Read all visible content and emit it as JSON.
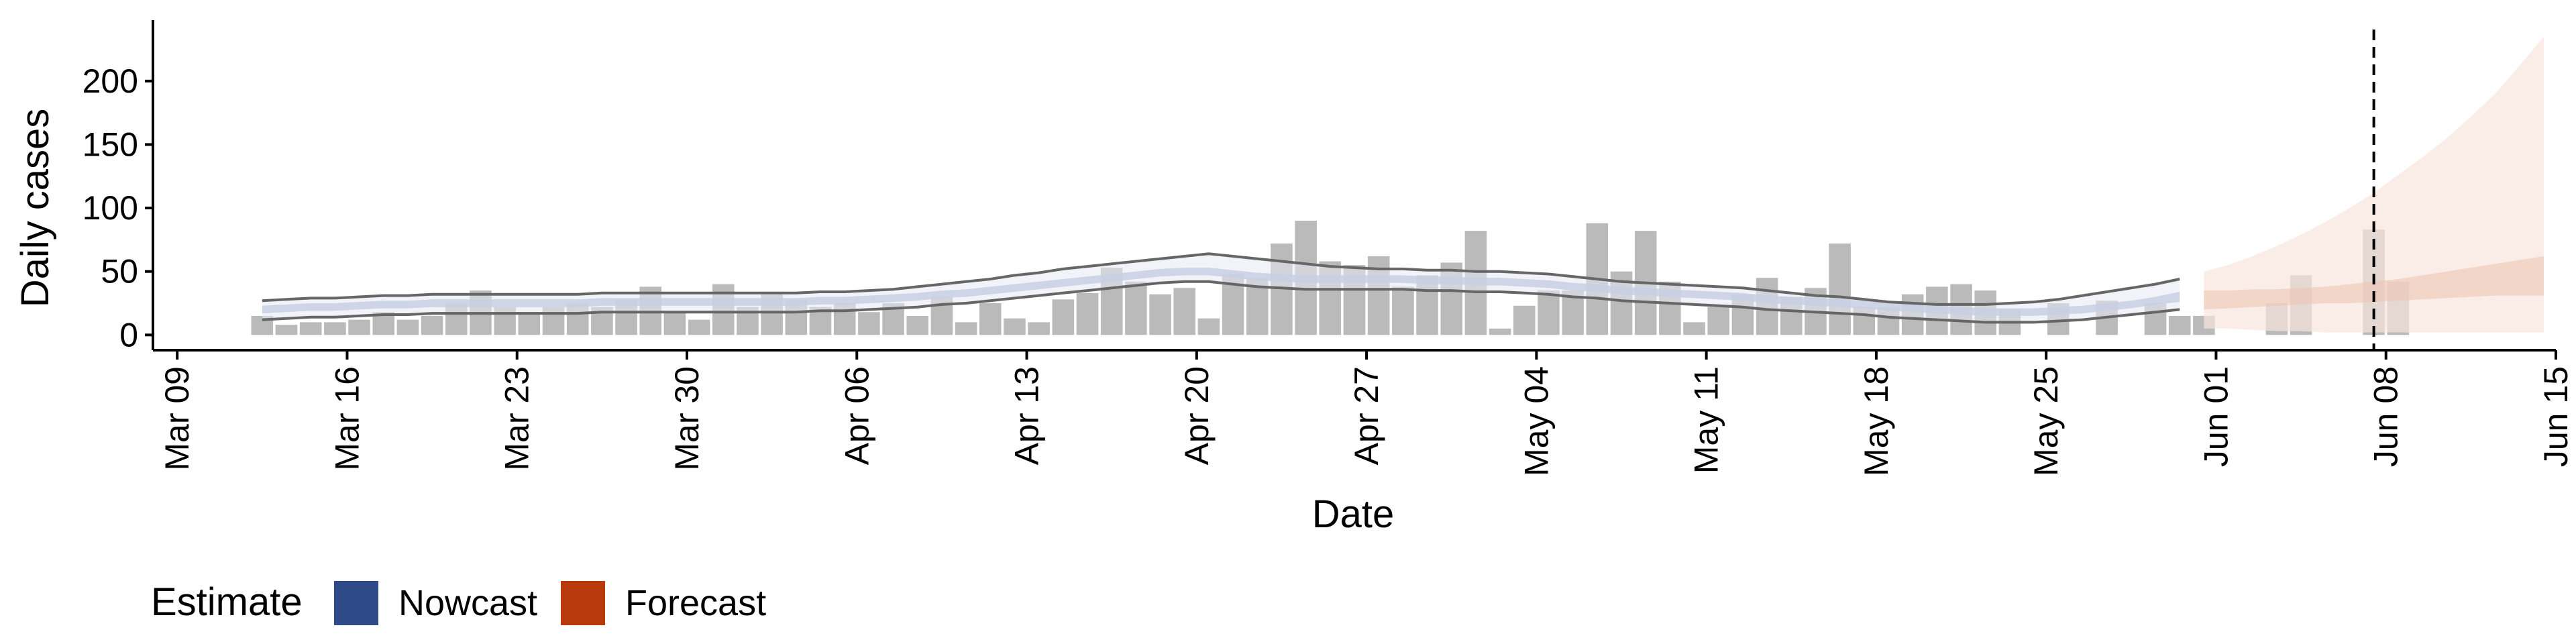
{
  "chart_data": {
    "type": "bar",
    "xlabel": "Date",
    "ylabel": "Daily cases",
    "x_tick_labels": [
      "Mar 09",
      "Mar 16",
      "Mar 23",
      "Mar 30",
      "Apr 06",
      "Apr 13",
      "Apr 20",
      "Apr 27",
      "May 04",
      "May 11",
      "May 18",
      "May 25",
      "Jun 01",
      "Jun 08",
      "Jun 15"
    ],
    "x_range": [
      "2020-03-08",
      "2020-06-15"
    ],
    "y_ticks": [
      0,
      50,
      100,
      150,
      200
    ],
    "ylim": [
      -12,
      248
    ],
    "reference_line": {
      "date": "2020-06-07",
      "style": "dashed"
    },
    "reported_cases": {
      "start_date": "2020-03-12",
      "values": [
        15,
        8,
        10,
        10,
        12,
        18,
        12,
        15,
        25,
        35,
        22,
        18,
        22,
        25,
        22,
        28,
        38,
        18,
        12,
        40,
        22,
        32,
        28,
        22,
        25,
        18,
        25,
        15,
        30,
        10,
        25,
        13,
        10,
        28,
        33,
        53,
        42,
        32,
        37,
        13,
        48,
        45,
        72,
        90,
        58,
        55,
        62,
        38,
        47,
        57,
        82,
        5,
        23,
        35,
        35,
        88,
        50,
        82,
        42,
        10,
        22,
        32,
        45,
        30,
        37,
        72,
        22,
        22,
        32,
        38,
        40,
        35,
        20,
        0,
        25,
        0,
        27,
        0,
        25,
        15,
        15,
        0,
        0,
        25,
        47,
        0,
        0,
        83,
        42,
        0,
        0,
        0
      ]
    },
    "nowcast": {
      "start_date": "2020-03-12",
      "median": [
        20,
        21,
        22,
        22,
        23,
        24,
        24,
        25,
        25,
        25,
        25,
        25,
        25,
        25,
        26,
        26,
        26,
        26,
        26,
        26,
        26,
        26,
        26,
        27,
        27,
        28,
        29,
        30,
        32,
        33,
        35,
        37,
        39,
        41,
        43,
        45,
        47,
        49,
        50,
        50,
        48,
        46,
        45,
        44,
        44,
        44,
        44,
        44,
        43,
        43,
        42,
        42,
        41,
        40,
        38,
        37,
        35,
        34,
        33,
        32,
        31,
        30,
        28,
        27,
        26,
        25,
        24,
        22,
        21,
        20,
        19,
        18,
        18,
        18,
        19,
        20,
        22,
        24,
        27,
        30
      ],
      "inner_lower": [
        17,
        18,
        19,
        19,
        20,
        21,
        21,
        22,
        22,
        22,
        22,
        22,
        22,
        22,
        23,
        23,
        23,
        23,
        23,
        23,
        23,
        23,
        23,
        24,
        24,
        25,
        26,
        27,
        29,
        30,
        32,
        34,
        36,
        38,
        40,
        42,
        44,
        46,
        47,
        47,
        45,
        43,
        42,
        41,
        41,
        41,
        41,
        41,
        40,
        40,
        39,
        39,
        38,
        37,
        35,
        34,
        32,
        31,
        30,
        29,
        28,
        27,
        25,
        24,
        23,
        22,
        21,
        19,
        18,
        17,
        16,
        15,
        15,
        15,
        16,
        17,
        19,
        21,
        24,
        26
      ],
      "inner_upper": [
        23,
        24,
        25,
        25,
        26,
        27,
        27,
        28,
        28,
        28,
        28,
        28,
        28,
        28,
        29,
        29,
        29,
        29,
        29,
        29,
        29,
        29,
        29,
        30,
        30,
        31,
        32,
        33,
        35,
        36,
        38,
        40,
        42,
        44,
        46,
        48,
        50,
        52,
        53,
        53,
        51,
        49,
        48,
        47,
        47,
        47,
        47,
        47,
        46,
        46,
        45,
        45,
        44,
        43,
        41,
        40,
        38,
        37,
        36,
        35,
        34,
        33,
        31,
        30,
        29,
        28,
        27,
        25,
        24,
        23,
        22,
        21,
        21,
        21,
        22,
        23,
        25,
        27,
        30,
        34
      ],
      "lower_90": [
        12,
        13,
        14,
        14,
        15,
        16,
        16,
        17,
        17,
        17,
        17,
        17,
        17,
        17,
        18,
        18,
        18,
        18,
        18,
        18,
        18,
        18,
        18,
        19,
        19,
        20,
        21,
        22,
        24,
        25,
        27,
        29,
        31,
        33,
        35,
        37,
        39,
        41,
        42,
        42,
        40,
        38,
        37,
        36,
        36,
        36,
        36,
        36,
        35,
        35,
        34,
        34,
        33,
        32,
        30,
        29,
        27,
        26,
        25,
        24,
        23,
        22,
        20,
        19,
        18,
        17,
        16,
        14,
        13,
        12,
        11,
        10,
        10,
        10,
        11,
        12,
        14,
        16,
        18,
        20
      ],
      "upper_90": [
        27,
        28,
        29,
        29,
        30,
        31,
        31,
        32,
        32,
        32,
        32,
        32,
        32,
        32,
        33,
        33,
        33,
        33,
        33,
        33,
        33,
        33,
        33,
        34,
        34,
        35,
        36,
        38,
        40,
        42,
        44,
        47,
        49,
        52,
        54,
        56,
        58,
        60,
        62,
        64,
        62,
        60,
        58,
        56,
        54,
        53,
        52,
        52,
        51,
        51,
        50,
        50,
        49,
        48,
        46,
        44,
        42,
        41,
        40,
        39,
        38,
        37,
        35,
        33,
        31,
        30,
        28,
        26,
        25,
        24,
        24,
        24,
        25,
        26,
        28,
        31,
        34,
        37,
        40,
        44
      ]
    },
    "forecast": {
      "start_date": "2020-05-31",
      "inner_lower": [
        20,
        21,
        22,
        23,
        24,
        25,
        25,
        26,
        27,
        28,
        29,
        30,
        31,
        31,
        31
      ],
      "inner_upper": [
        35,
        35,
        36,
        36,
        37,
        38,
        40,
        42,
        44,
        47,
        50,
        53,
        56,
        59,
        62
      ],
      "lower_90": [
        5,
        5,
        4,
        3,
        3,
        2,
        2,
        2,
        2,
        2,
        2,
        2,
        2,
        2,
        2
      ],
      "upper_90": [
        50,
        55,
        62,
        70,
        79,
        89,
        100,
        112,
        126,
        140,
        155,
        172,
        190,
        212,
        235
      ]
    },
    "legend": {
      "title": "Estimate",
      "position": "bottom-left",
      "items": [
        {
          "label": "Nowcast",
          "color": "#2e4a87"
        },
        {
          "label": "Forecast",
          "color": "#b83a0c"
        }
      ]
    },
    "colors": {
      "bars": "#a6a6a6",
      "nowcast_inner": "#c7cfe3",
      "nowcast_outer": "#e5e9f2",
      "forecast_inner": "#ecc6b4",
      "forecast_outer": "#f8e6dd",
      "nowcast_lines": "#666666"
    },
    "grid": false
  }
}
